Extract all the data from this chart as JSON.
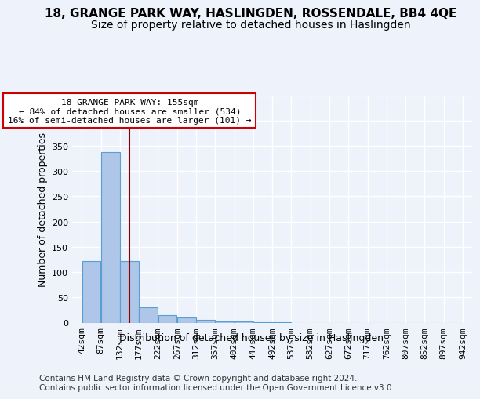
{
  "title": "18, GRANGE PARK WAY, HASLINGDEN, ROSSENDALE, BB4 4QE",
  "subtitle": "Size of property relative to detached houses in Haslingden",
  "xlabel": "Distribution of detached houses by size in Haslingden",
  "ylabel": "Number of detached properties",
  "footnote": "Contains HM Land Registry data © Crown copyright and database right 2024.\nContains public sector information licensed under the Open Government Licence v3.0.",
  "bin_edges": [
    42,
    87,
    132,
    177,
    222,
    267,
    312,
    357,
    402,
    447,
    492,
    537,
    582,
    627,
    672,
    717,
    762,
    807,
    852,
    897,
    942
  ],
  "bar_heights": [
    122,
    338,
    122,
    30,
    15,
    10,
    6,
    3,
    2,
    1,
    1,
    0,
    0,
    0,
    0,
    0,
    0,
    0,
    0,
    0
  ],
  "bar_color": "#aec6e8",
  "bar_edge_color": "#5a9fd4",
  "property_size": 155,
  "vline_color": "#8b0000",
  "annotation_line1": "18 GRANGE PARK WAY: 155sqm",
  "annotation_line2": "← 84% of detached houses are smaller (534)",
  "annotation_line3": "16% of semi-detached houses are larger (101) →",
  "annotation_box_color": "#ffffff",
  "annotation_box_edge_color": "#cc0000",
  "ylim": [
    0,
    450
  ],
  "background_color": "#eef2fb",
  "grid_color": "#ffffff",
  "title_fontsize": 11,
  "subtitle_fontsize": 10,
  "axis_label_fontsize": 9,
  "tick_fontsize": 8,
  "annotation_fontsize": 8,
  "footnote_fontsize": 7.5
}
